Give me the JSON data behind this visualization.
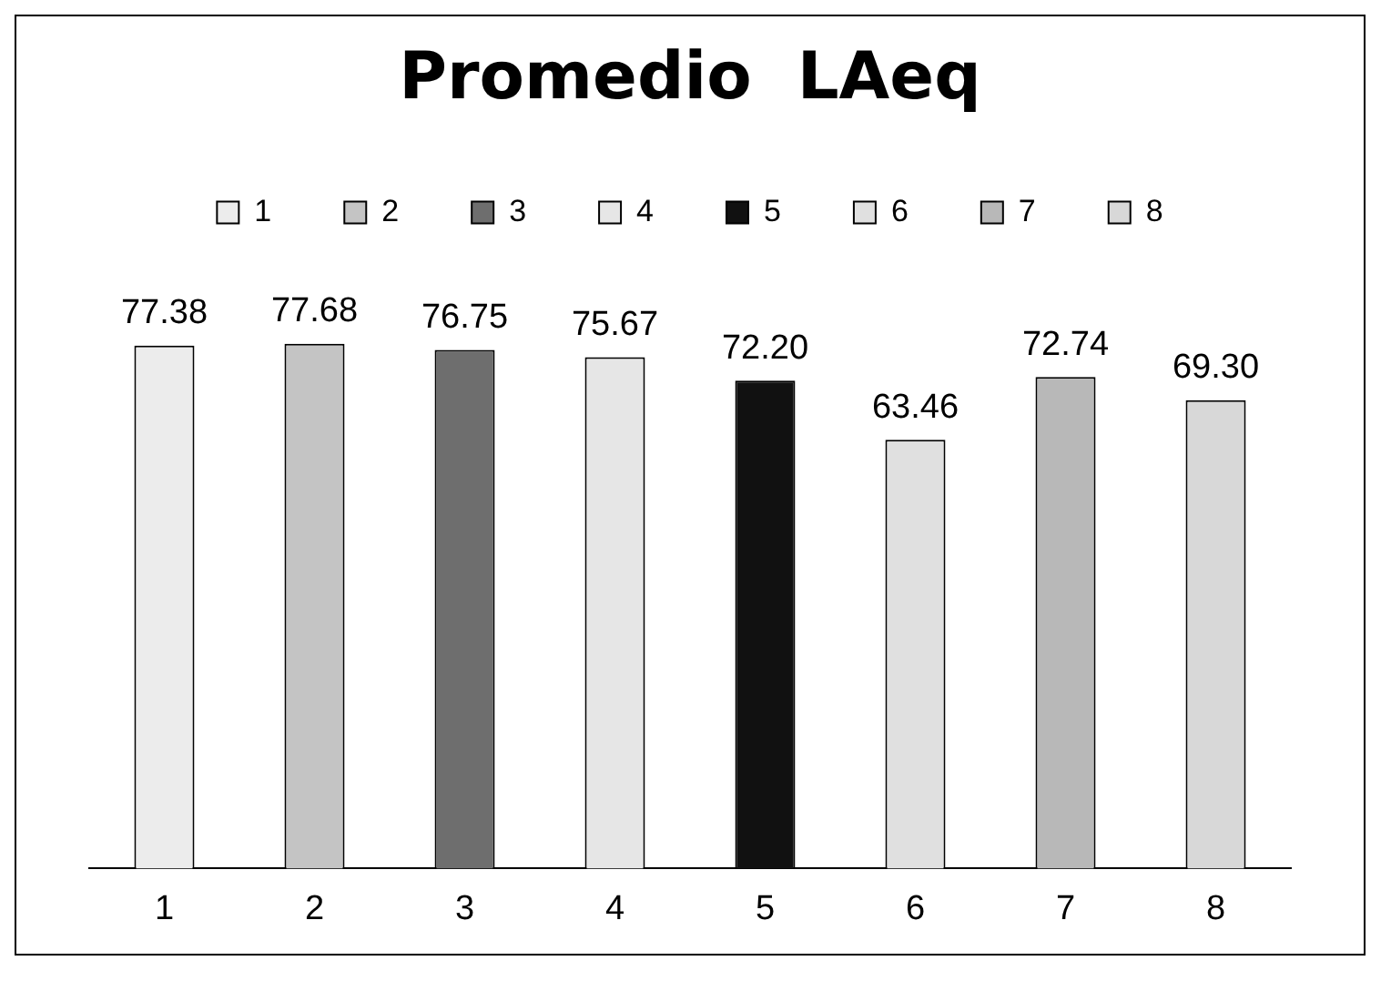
{
  "chart_data": {
    "type": "bar",
    "title": "Promedio  LAeq",
    "categories": [
      "1",
      "2",
      "3",
      "4",
      "5",
      "6",
      "7",
      "8"
    ],
    "series": [
      {
        "name": "1",
        "color": "#ececec",
        "values": [
          77.38,
          null,
          null,
          null,
          null,
          null,
          null,
          null
        ],
        "value_labels": [
          "77.38",
          null,
          null,
          null,
          null,
          null,
          null,
          null
        ]
      },
      {
        "name": "2",
        "color": "#c4c4c4",
        "values": [
          null,
          77.68,
          null,
          null,
          null,
          null,
          null,
          null
        ],
        "value_labels": [
          null,
          "77.68",
          null,
          null,
          null,
          null,
          null,
          null
        ]
      },
      {
        "name": "3",
        "color": "#6e6e6e",
        "values": [
          null,
          null,
          76.75,
          null,
          null,
          null,
          null,
          null
        ],
        "value_labels": [
          null,
          null,
          "76.75",
          null,
          null,
          null,
          null,
          null
        ]
      },
      {
        "name": "4",
        "color": "#e6e6e6",
        "values": [
          null,
          null,
          null,
          75.67,
          null,
          null,
          null,
          null
        ],
        "value_labels": [
          null,
          null,
          null,
          "75.67",
          null,
          null,
          null,
          null
        ]
      },
      {
        "name": "5",
        "color": "#111111",
        "values": [
          null,
          null,
          null,
          null,
          72.2,
          null,
          null,
          null
        ],
        "value_labels": [
          null,
          null,
          null,
          null,
          "72.20",
          null,
          null,
          null
        ]
      },
      {
        "name": "6",
        "color": "#e0e0e0",
        "values": [
          null,
          null,
          null,
          null,
          null,
          63.46,
          null,
          null
        ],
        "value_labels": [
          null,
          null,
          null,
          null,
          null,
          "63.46",
          null,
          null
        ]
      },
      {
        "name": "7",
        "color": "#b8b8b8",
        "values": [
          null,
          null,
          null,
          null,
          null,
          null,
          72.74,
          null
        ],
        "value_labels": [
          null,
          null,
          null,
          null,
          null,
          null,
          "72.74",
          null
        ]
      },
      {
        "name": "8",
        "color": "#d8d8d8",
        "values": [
          null,
          null,
          null,
          null,
          null,
          null,
          null,
          69.3
        ],
        "value_labels": [
          null,
          null,
          null,
          null,
          null,
          null,
          null,
          "69.30"
        ]
      }
    ],
    "legend": "top"
  }
}
